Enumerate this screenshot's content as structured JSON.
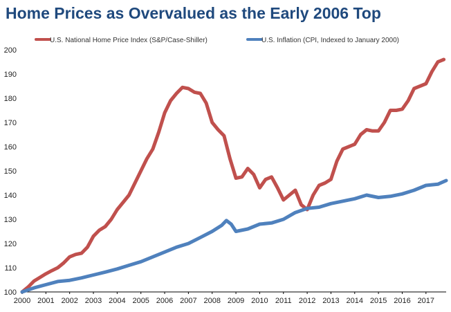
{
  "chart_data": {
    "type": "line",
    "title": "Home Prices as Overvalued as the Early 2006 Top",
    "xlabel": "",
    "ylabel": "",
    "xlim": [
      2000,
      2017.85
    ],
    "ylim": [
      100,
      200
    ],
    "y_ticks": [
      100,
      110,
      120,
      130,
      140,
      150,
      160,
      170,
      180,
      190,
      200
    ],
    "x_tick_labels": [
      "2000",
      "2001",
      "2002",
      "2003",
      "2004",
      "2005",
      "2006",
      "2007",
      "2008",
      "2009",
      "2010",
      "2011",
      "2012",
      "2013",
      "2014",
      "2015",
      "2016",
      "2017"
    ],
    "grid": false,
    "legend_position": "top",
    "series": [
      {
        "name": "U.S. National Home Price Index (S&P/Case-Shiller)",
        "color": "#c0504d",
        "points": [
          [
            2000.0,
            100
          ],
          [
            2000.25,
            102
          ],
          [
            2000.5,
            104.5
          ],
          [
            2000.75,
            106
          ],
          [
            2001.0,
            107.5
          ],
          [
            2001.25,
            108.8
          ],
          [
            2001.5,
            110
          ],
          [
            2001.75,
            112
          ],
          [
            2002.0,
            114.5
          ],
          [
            2002.25,
            115.5
          ],
          [
            2002.5,
            116
          ],
          [
            2002.75,
            118.5
          ],
          [
            2003.0,
            123
          ],
          [
            2003.25,
            125.5
          ],
          [
            2003.5,
            127
          ],
          [
            2003.75,
            130
          ],
          [
            2004.0,
            134
          ],
          [
            2004.25,
            137
          ],
          [
            2004.5,
            140
          ],
          [
            2004.75,
            145
          ],
          [
            2005.0,
            150
          ],
          [
            2005.25,
            155
          ],
          [
            2005.5,
            159
          ],
          [
            2005.75,
            166
          ],
          [
            2006.0,
            174
          ],
          [
            2006.25,
            179
          ],
          [
            2006.5,
            182
          ],
          [
            2006.75,
            184.5
          ],
          [
            2007.0,
            184
          ],
          [
            2007.25,
            182.5
          ],
          [
            2007.5,
            182
          ],
          [
            2007.75,
            178
          ],
          [
            2008.0,
            170
          ],
          [
            2008.25,
            167
          ],
          [
            2008.5,
            164.5
          ],
          [
            2008.75,
            155
          ],
          [
            2009.0,
            147
          ],
          [
            2009.25,
            147.5
          ],
          [
            2009.5,
            151
          ],
          [
            2009.75,
            148.5
          ],
          [
            2010.0,
            143
          ],
          [
            2010.25,
            146.5
          ],
          [
            2010.5,
            147.5
          ],
          [
            2010.75,
            143
          ],
          [
            2011.0,
            138
          ],
          [
            2011.25,
            140
          ],
          [
            2011.5,
            142
          ],
          [
            2011.75,
            136
          ],
          [
            2012.0,
            134
          ],
          [
            2012.25,
            140
          ],
          [
            2012.5,
            144
          ],
          [
            2012.75,
            145
          ],
          [
            2013.0,
            146.5
          ],
          [
            2013.25,
            154
          ],
          [
            2013.5,
            159
          ],
          [
            2013.75,
            160
          ],
          [
            2014.0,
            161
          ],
          [
            2014.25,
            165
          ],
          [
            2014.5,
            167
          ],
          [
            2014.75,
            166.5
          ],
          [
            2015.0,
            166.5
          ],
          [
            2015.25,
            170
          ],
          [
            2015.5,
            175
          ],
          [
            2015.75,
            175
          ],
          [
            2016.0,
            175.5
          ],
          [
            2016.25,
            179
          ],
          [
            2016.5,
            184
          ],
          [
            2016.75,
            185
          ],
          [
            2017.0,
            186
          ],
          [
            2017.25,
            191
          ],
          [
            2017.5,
            195
          ],
          [
            2017.75,
            196
          ]
        ]
      },
      {
        "name": "U.S. Inflation (CPI, Indexed to January 2000)",
        "color": "#4f81bd",
        "points": [
          [
            2000.0,
            100
          ],
          [
            2000.5,
            101.7
          ],
          [
            2001.0,
            103
          ],
          [
            2001.5,
            104.3
          ],
          [
            2002.0,
            104.8
          ],
          [
            2002.5,
            105.8
          ],
          [
            2003.0,
            107
          ],
          [
            2003.5,
            108.2
          ],
          [
            2004.0,
            109.5
          ],
          [
            2004.5,
            111
          ],
          [
            2005.0,
            112.5
          ],
          [
            2005.5,
            114.5
          ],
          [
            2006.0,
            116.5
          ],
          [
            2006.5,
            118.5
          ],
          [
            2007.0,
            120
          ],
          [
            2007.5,
            122.5
          ],
          [
            2008.0,
            125
          ],
          [
            2008.4,
            127.5
          ],
          [
            2008.6,
            129.5
          ],
          [
            2008.8,
            128
          ],
          [
            2009.0,
            125
          ],
          [
            2009.5,
            126
          ],
          [
            2010.0,
            128
          ],
          [
            2010.5,
            128.5
          ],
          [
            2011.0,
            130
          ],
          [
            2011.5,
            132.8
          ],
          [
            2012.0,
            134.5
          ],
          [
            2012.5,
            135
          ],
          [
            2013.0,
            136.5
          ],
          [
            2013.5,
            137.5
          ],
          [
            2014.0,
            138.5
          ],
          [
            2014.5,
            140
          ],
          [
            2015.0,
            139
          ],
          [
            2015.5,
            139.5
          ],
          [
            2016.0,
            140.5
          ],
          [
            2016.5,
            142
          ],
          [
            2017.0,
            144
          ],
          [
            2017.5,
            144.5
          ],
          [
            2017.85,
            146
          ]
        ]
      }
    ]
  }
}
